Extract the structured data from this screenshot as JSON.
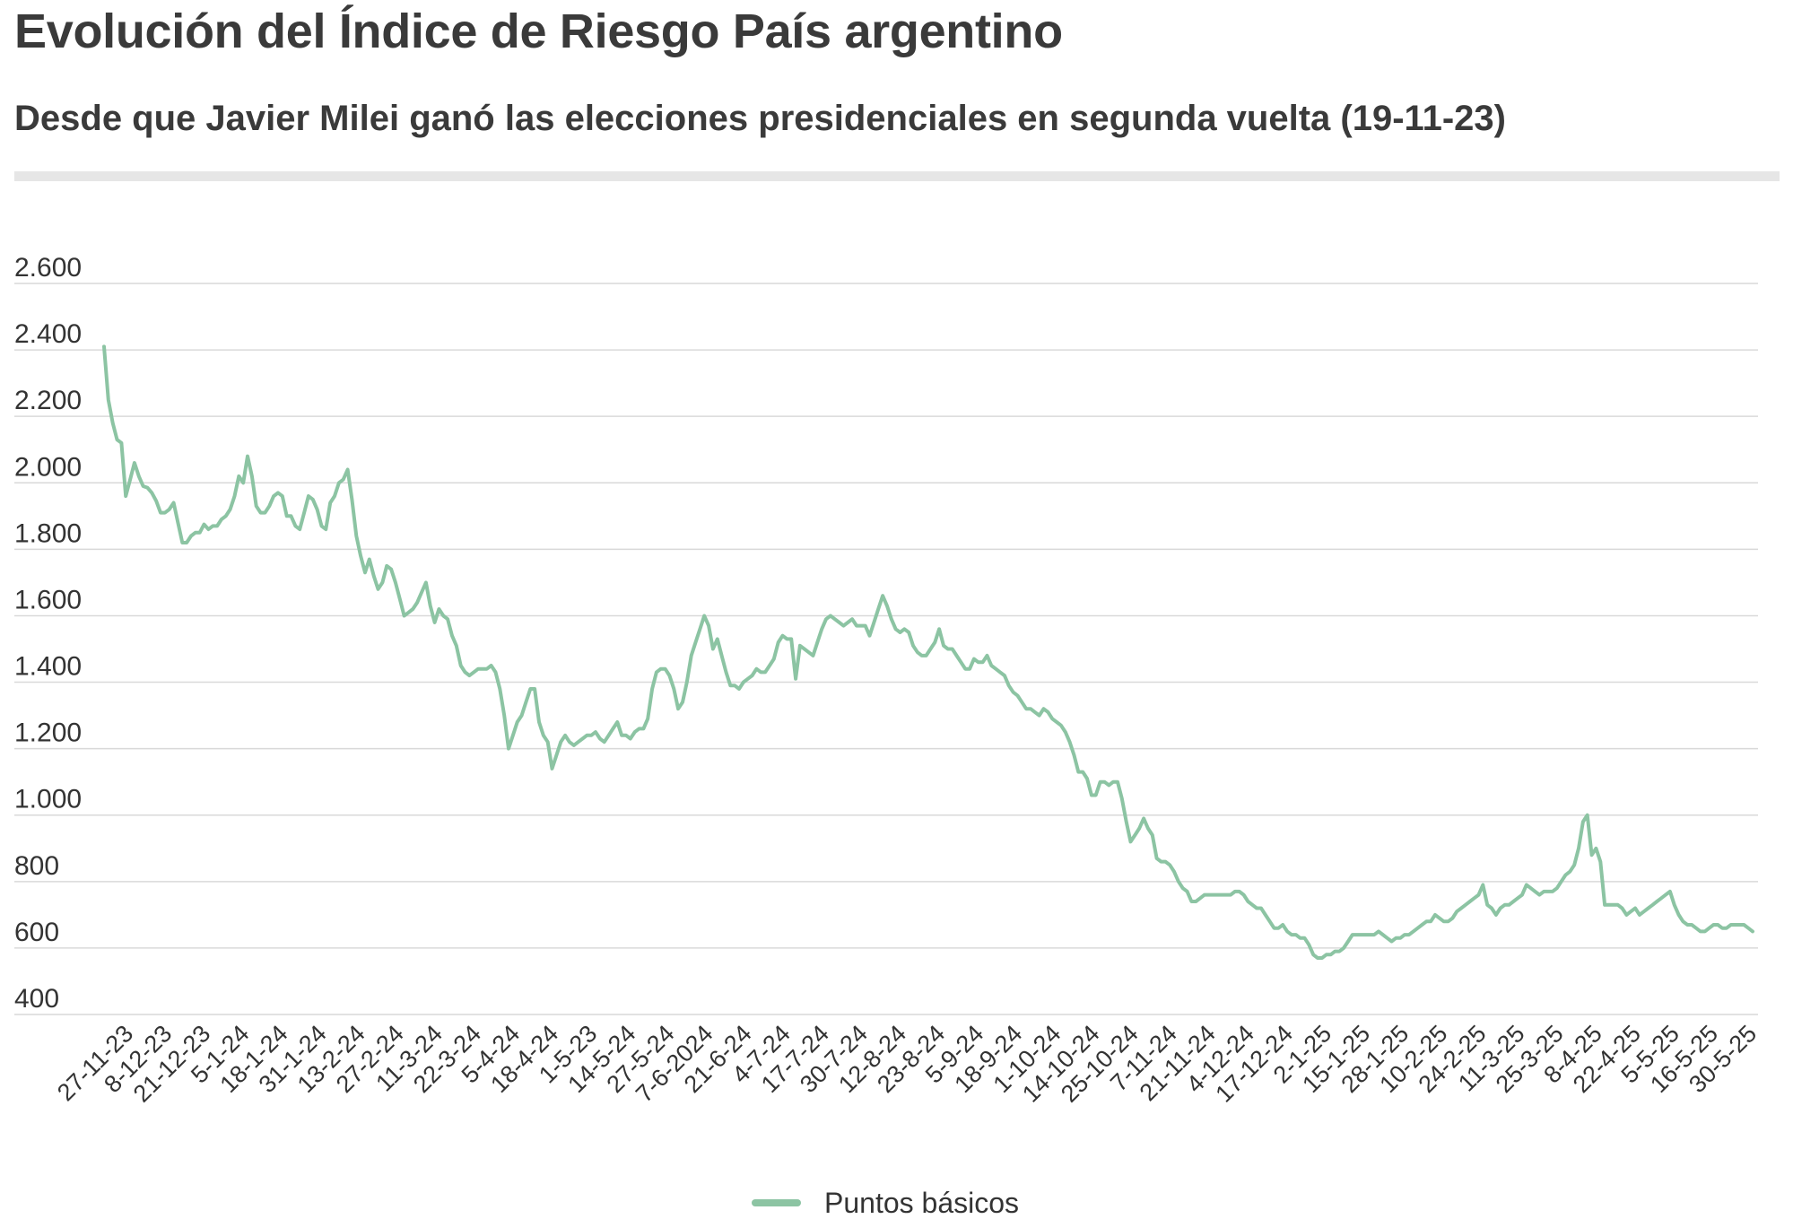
{
  "header": {
    "title": "Evolución del Índice de Riesgo País argentino",
    "subtitle": "Desde que Javier Milei ganó las elecciones presidenciales en segunda vuelta (19-11-23)"
  },
  "colors": {
    "line": "#8cc4a3",
    "grid": "#d9d9d9",
    "divider": "#e6e6e6",
    "text": "#333333"
  },
  "legend": {
    "label": "Puntos básicos",
    "position": "bottom-center"
  },
  "chart_data": {
    "type": "line",
    "ylim": [
      400,
      2600
    ],
    "yticks": [
      400,
      600,
      800,
      1000,
      1200,
      1400,
      1600,
      1800,
      2000,
      2200,
      2400,
      2600
    ],
    "ytick_labels": [
      "400",
      "600",
      "800",
      "1.000",
      "1.200",
      "1.400",
      "1.600",
      "1.800",
      "2.000",
      "2.200",
      "2.400",
      "2.600"
    ],
    "x_tick_labels": [
      "27-11-23",
      "8-12-23",
      "21-12-23",
      "5-1-24",
      "18-1-24",
      "31-1-24",
      "13-2-24",
      "27-2-24",
      "11-3-24",
      "22-3-24",
      "5-4-24",
      "18-4-24",
      "1-5-23",
      "14-5-24",
      "27-5-24",
      "7-6-2024",
      "21-6-24",
      "4-7-24",
      "17-7-24",
      "30-7-24",
      "12-8-24",
      "23-8-24",
      "5-9-24",
      "18-9-24",
      "1-10-24",
      "14-10-24",
      "25-10-24",
      "7-11-24",
      "21-11-24",
      "4-12-24",
      "17-12-24",
      "2-1-25",
      "15-1-25",
      "28-1-25",
      "10-2-25",
      "24-2-25",
      "11-3-25",
      "25-3-25",
      "8-4-25",
      "22-4-25",
      "5-5-25",
      "16-5-25",
      "30-5-25"
    ],
    "grid": true,
    "series": [
      {
        "name": "Puntos básicos",
        "values": [
          2410,
          2250,
          2180,
          2130,
          2120,
          1960,
          2010,
          2060,
          2020,
          1990,
          1985,
          1970,
          1945,
          1910,
          1910,
          1920,
          1940,
          1880,
          1820,
          1820,
          1840,
          1850,
          1850,
          1875,
          1860,
          1870,
          1870,
          1890,
          1900,
          1920,
          1960,
          2020,
          2000,
          2080,
          2020,
          1930,
          1910,
          1910,
          1930,
          1960,
          1970,
          1960,
          1900,
          1900,
          1870,
          1860,
          1910,
          1960,
          1950,
          1920,
          1870,
          1860,
          1940,
          1960,
          2000,
          2010,
          2040,
          1950,
          1840,
          1780,
          1730,
          1770,
          1720,
          1680,
          1700,
          1750,
          1740,
          1700,
          1650,
          1600,
          1610,
          1620,
          1640,
          1670,
          1700,
          1630,
          1580,
          1620,
          1600,
          1590,
          1540,
          1510,
          1450,
          1430,
          1420,
          1430,
          1440,
          1440,
          1440,
          1450,
          1430,
          1380,
          1300,
          1200,
          1240,
          1280,
          1300,
          1340,
          1380,
          1380,
          1280,
          1240,
          1220,
          1140,
          1180,
          1220,
          1240,
          1220,
          1210,
          1220,
          1230,
          1240,
          1240,
          1250,
          1230,
          1220,
          1240,
          1260,
          1280,
          1240,
          1240,
          1230,
          1250,
          1260,
          1260,
          1290,
          1380,
          1430,
          1440,
          1440,
          1420,
          1380,
          1320,
          1340,
          1400,
          1480,
          1520,
          1560,
          1600,
          1570,
          1500,
          1530,
          1480,
          1430,
          1390,
          1390,
          1380,
          1400,
          1410,
          1420,
          1440,
          1430,
          1430,
          1450,
          1470,
          1520,
          1540,
          1530,
          1530,
          1410,
          1510,
          1500,
          1490,
          1480,
          1520,
          1560,
          1590,
          1600,
          1590,
          1580,
          1570,
          1580,
          1590,
          1570,
          1570,
          1570,
          1540,
          1580,
          1620,
          1660,
          1630,
          1590,
          1560,
          1550,
          1560,
          1550,
          1510,
          1490,
          1480,
          1480,
          1500,
          1520,
          1560,
          1510,
          1500,
          1500,
          1480,
          1460,
          1440,
          1440,
          1470,
          1460,
          1460,
          1480,
          1450,
          1440,
          1430,
          1420,
          1390,
          1370,
          1360,
          1340,
          1320,
          1320,
          1310,
          1300,
          1320,
          1310,
          1290,
          1280,
          1270,
          1250,
          1220,
          1180,
          1130,
          1130,
          1110,
          1060,
          1060,
          1100,
          1100,
          1090,
          1100,
          1100,
          1050,
          980,
          920,
          940,
          960,
          990,
          960,
          940,
          870,
          860,
          860,
          850,
          830,
          800,
          780,
          770,
          740,
          740,
          750,
          760,
          760,
          760,
          760,
          760,
          760,
          760,
          770,
          770,
          760,
          740,
          730,
          720,
          720,
          700,
          680,
          660,
          660,
          670,
          650,
          640,
          640,
          630,
          630,
          610,
          580,
          570,
          570,
          580,
          580,
          590,
          590,
          600,
          620,
          640,
          640,
          640,
          640,
          640,
          640,
          650,
          640,
          630,
          620,
          630,
          630,
          640,
          640,
          650,
          660,
          670,
          680,
          680,
          700,
          690,
          680,
          680,
          690,
          710,
          720,
          730,
          740,
          750,
          760,
          790,
          730,
          720,
          700,
          720,
          730,
          730,
          740,
          750,
          760,
          790,
          780,
          770,
          760,
          770,
          770,
          770,
          780,
          800,
          820,
          830,
          850,
          900,
          980,
          1000,
          880,
          900,
          860,
          730,
          730,
          730,
          730,
          720,
          700,
          710,
          720,
          700,
          710,
          720,
          730,
          740,
          750,
          760,
          770,
          730,
          700,
          680,
          670,
          670,
          660,
          650,
          650,
          660,
          670,
          670,
          660,
          660,
          670,
          670,
          670,
          670,
          660,
          650
        ]
      }
    ]
  }
}
